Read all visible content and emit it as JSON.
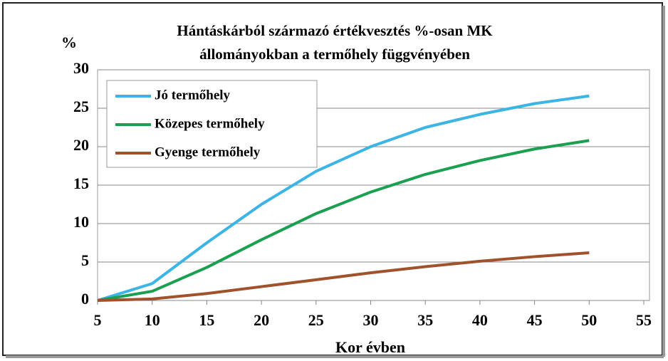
{
  "chart_data": {
    "type": "line",
    "title": [
      "Hántáskárból származó értékvesztés %-osan MK",
      "állományokban a termőhely függvényében"
    ],
    "y_label": "%",
    "x_label": "Kor évben",
    "x": [
      5,
      10,
      15,
      20,
      25,
      30,
      35,
      40,
      45,
      50
    ],
    "series": [
      {
        "name": "Jó termőhely",
        "color": "#3cb4e5",
        "values": [
          0,
          2.2,
          7.5,
          12.5,
          16.8,
          20,
          22.5,
          24.2,
          25.6,
          26.6
        ]
      },
      {
        "name": "Közepes termőhely",
        "color": "#1aa050",
        "values": [
          0,
          1.2,
          4.3,
          7.9,
          11.3,
          14.1,
          16.4,
          18.2,
          19.7,
          20.8
        ]
      },
      {
        "name": "Gyenge termőhely",
        "color": "#a0522d",
        "values": [
          0,
          0.2,
          0.9,
          1.8,
          2.7,
          3.6,
          4.4,
          5.1,
          5.7,
          6.2
        ]
      }
    ],
    "xlim": [
      5,
      55
    ],
    "xticks": [
      5,
      10,
      15,
      20,
      25,
      30,
      35,
      40,
      45,
      50,
      55
    ],
    "ylim": [
      0,
      30
    ],
    "yticks": [
      0,
      5,
      10,
      15,
      20,
      25,
      30
    ],
    "grid": true,
    "legend": "upper left"
  }
}
